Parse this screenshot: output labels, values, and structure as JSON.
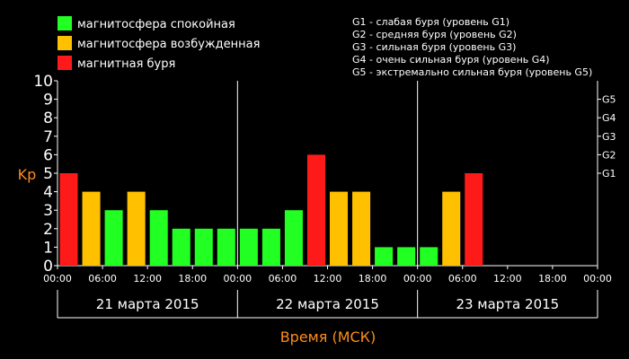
{
  "chart_data": {
    "type": "bar",
    "ylabel": "Kp",
    "xlabel": "Время (МСК)",
    "ylim": [
      0,
      10
    ],
    "yticks": [
      "0",
      "1",
      "2",
      "3",
      "4",
      "5",
      "6",
      "7",
      "8",
      "9",
      "10"
    ],
    "storm_levels": [
      {
        "label": "G1",
        "kp": 5
      },
      {
        "label": "G2",
        "kp": 6
      },
      {
        "label": "G3",
        "kp": 7
      },
      {
        "label": "G4",
        "kp": 8
      },
      {
        "label": "G5",
        "kp": 9
      }
    ],
    "time_ticks": [
      "00:00",
      "06:00",
      "12:00",
      "18:00",
      "00:00",
      "06:00",
      "12:00",
      "18:00",
      "00:00",
      "06:00",
      "12:00",
      "18:00",
      "00:00"
    ],
    "days": [
      "21 марта 2015",
      "22 марта 2015",
      "23 марта 2015"
    ],
    "slots_per_day": 8,
    "colors": {
      "quiet": "#22ff22",
      "disturbed": "#ffc000",
      "storm": "#ff1a1a",
      "axis_label": "#ff8c1a"
    },
    "legend": [
      {
        "label": "магнитосфера спокойная",
        "status": "quiet"
      },
      {
        "label": "магнитосфера возбужденная",
        "status": "disturbed"
      },
      {
        "label": "магнитная буря",
        "status": "storm"
      }
    ],
    "storm_legend": [
      "G1 - слабая буря (уровень G1)",
      "G2 - средняя буря (уровень G2)",
      "G3 - сильная буря (уровень G3)",
      "G4 - очень сильная буря (уровень G4)",
      "G5 - экстремально сильная буря (уровень G5)"
    ],
    "values": [
      5,
      4,
      3,
      4,
      3,
      2,
      2,
      2,
      2,
      2,
      3,
      6,
      4,
      4,
      1,
      1,
      1,
      4,
      5,
      null,
      null,
      null,
      null,
      null
    ],
    "status": [
      "storm",
      "disturbed",
      "quiet",
      "disturbed",
      "quiet",
      "quiet",
      "quiet",
      "quiet",
      "quiet",
      "quiet",
      "quiet",
      "storm",
      "disturbed",
      "disturbed",
      "quiet",
      "quiet",
      "quiet",
      "disturbed",
      "storm",
      null,
      null,
      null,
      null,
      null
    ]
  }
}
